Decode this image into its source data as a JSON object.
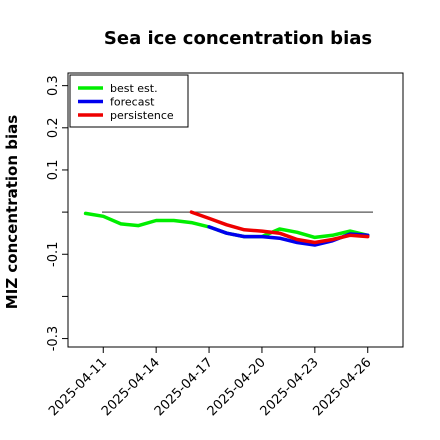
{
  "chart_data": {
    "type": "line",
    "title": "Sea ice concentration bias",
    "ylabel": "MIZ concentration bias",
    "xlabel": "",
    "ylim": [
      -0.32,
      0.33
    ],
    "xlim": [
      "2025-04-09",
      "2025-04-28"
    ],
    "x_ticks": [
      "2025-04-11",
      "2025-04-14",
      "2025-04-17",
      "2025-04-20",
      "2025-04-23",
      "2025-04-26"
    ],
    "x_tick_colors": [
      "#000000",
      "#000000",
      "#228B22",
      "#000000",
      "#000000",
      "#000000"
    ],
    "y_ticks": [
      -0.3,
      -0.2,
      -0.1,
      0.0,
      0.1,
      0.2,
      0.3
    ],
    "y_tick_labels": [
      "-0.3",
      "",
      "-0.1",
      "",
      "0.1",
      "0.2",
      "0.3"
    ],
    "reference_line": 0,
    "legend_position": "top-left",
    "series": [
      {
        "name": "best est.",
        "color": "#00ee00",
        "x": [
          "2025-04-10",
          "2025-04-11",
          "2025-04-12",
          "2025-04-13",
          "2025-04-14",
          "2025-04-15",
          "2025-04-16",
          "2025-04-17",
          "2025-04-18",
          "2025-04-19",
          "2025-04-20",
          "2025-04-21",
          "2025-04-22",
          "2025-04-23",
          "2025-04-24",
          "2025-04-25",
          "2025-04-26"
        ],
        "values": [
          -0.003,
          -0.01,
          -0.028,
          -0.032,
          -0.02,
          -0.02,
          -0.025,
          -0.035,
          -0.05,
          -0.058,
          -0.058,
          -0.04,
          -0.048,
          -0.06,
          -0.055,
          -0.045,
          -0.055
        ]
      },
      {
        "name": "forecast",
        "color": "#0000ee",
        "x": [
          "2025-04-17",
          "2025-04-18",
          "2025-04-19",
          "2025-04-20",
          "2025-04-21",
          "2025-04-22",
          "2025-04-23",
          "2025-04-24",
          "2025-04-25",
          "2025-04-26"
        ],
        "values": [
          -0.035,
          -0.05,
          -0.058,
          -0.058,
          -0.062,
          -0.072,
          -0.078,
          -0.068,
          -0.052,
          -0.055
        ]
      },
      {
        "name": "persistence",
        "color": "#ee0000",
        "x": [
          "2025-04-16",
          "2025-04-17",
          "2025-04-18",
          "2025-04-19",
          "2025-04-20",
          "2025-04-21",
          "2025-04-22",
          "2025-04-23",
          "2025-04-24",
          "2025-04-25",
          "2025-04-26"
        ],
        "values": [
          0.0,
          -0.015,
          -0.03,
          -0.042,
          -0.045,
          -0.05,
          -0.065,
          -0.072,
          -0.065,
          -0.055,
          -0.058
        ]
      }
    ]
  }
}
